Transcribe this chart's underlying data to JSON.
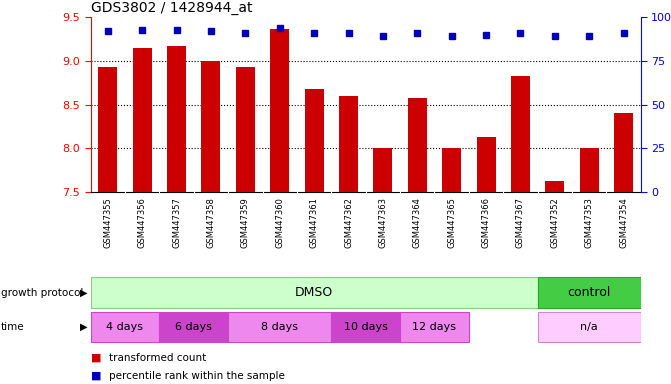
{
  "title": "GDS3802 / 1428944_at",
  "samples": [
    "GSM447355",
    "GSM447356",
    "GSM447357",
    "GSM447358",
    "GSM447359",
    "GSM447360",
    "GSM447361",
    "GSM447362",
    "GSM447363",
    "GSM447364",
    "GSM447365",
    "GSM447366",
    "GSM447367",
    "GSM447352",
    "GSM447353",
    "GSM447354"
  ],
  "bar_values": [
    8.93,
    9.15,
    9.17,
    9.0,
    8.93,
    9.37,
    8.68,
    8.6,
    8.0,
    8.58,
    8.0,
    8.13,
    8.83,
    7.63,
    8.0,
    8.4
  ],
  "dot_values": [
    92,
    93,
    93,
    92,
    91,
    94,
    91,
    91,
    89,
    91,
    89,
    90,
    91,
    89,
    89,
    91
  ],
  "ylim_left": [
    7.5,
    9.5
  ],
  "ylim_right": [
    0,
    100
  ],
  "yticks_left": [
    7.5,
    8.0,
    8.5,
    9.0,
    9.5
  ],
  "yticks_right": [
    0,
    25,
    50,
    75,
    100
  ],
  "ytick_labels_right": [
    "0",
    "25",
    "50",
    "75",
    "100%"
  ],
  "bar_color": "#cc0000",
  "dot_color": "#0000bb",
  "bar_bottom": 7.5,
  "dotted_gridlines": [
    8.0,
    8.5,
    9.0
  ],
  "growth_protocol_groups": [
    {
      "label": "DMSO",
      "start": 0,
      "end": 13,
      "color": "#ccffcc",
      "edge_color": "#88cc88"
    },
    {
      "label": "control",
      "start": 13,
      "end": 16,
      "color": "#44cc44",
      "edge_color": "#22aa22"
    }
  ],
  "time_groups": [
    {
      "label": "4 days",
      "start": 0,
      "end": 2,
      "color": "#ee88ee",
      "edge_color": "#cc44cc"
    },
    {
      "label": "6 days",
      "start": 2,
      "end": 4,
      "color": "#cc44cc",
      "edge_color": "#cc44cc"
    },
    {
      "label": "8 days",
      "start": 4,
      "end": 7,
      "color": "#ee88ee",
      "edge_color": "#cc44cc"
    },
    {
      "label": "10 days",
      "start": 7,
      "end": 9,
      "color": "#cc44cc",
      "edge_color": "#cc44cc"
    },
    {
      "label": "12 days",
      "start": 9,
      "end": 11,
      "color": "#ee88ee",
      "edge_color": "#cc44cc"
    },
    {
      "label": "n/a",
      "start": 13,
      "end": 16,
      "color": "#ffccff",
      "edge_color": "#cc88cc"
    }
  ],
  "legend_bar_label": "transformed count",
  "legend_dot_label": "percentile rank within the sample",
  "xlabel_growth": "growth protocol",
  "xlabel_time": "time",
  "sample_label_bg": "#dddddd",
  "fig_bg_color": "#ffffff"
}
